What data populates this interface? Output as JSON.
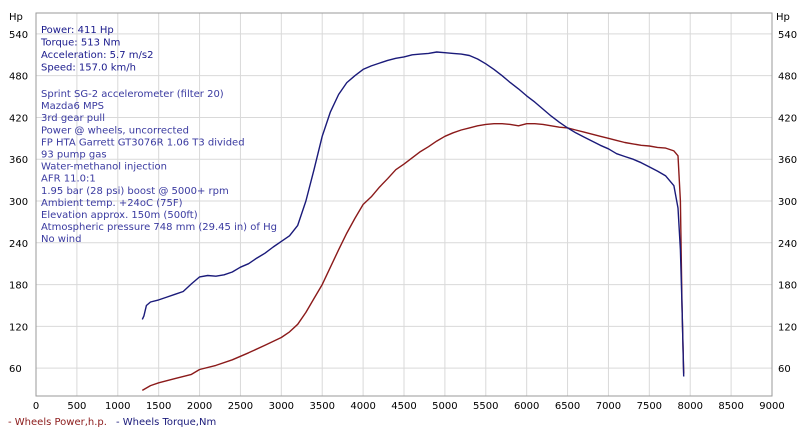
{
  "chart_data": {
    "type": "line",
    "units": {
      "left": "Hp",
      "right": "Hp"
    },
    "stats": [
      {
        "label": "Power:",
        "value": "411 Hp"
      },
      {
        "label": "Torque:",
        "value": "513 Nm"
      },
      {
        "label": "Acceleration:",
        "value": "5.7 m/s2"
      },
      {
        "label": "Speed:",
        "value": "157.0 km/h"
      }
    ],
    "notes": [
      "Sprint SG-2 accelerometer (filter 20)",
      "Mazda6 MPS",
      "3rd gear pull",
      "Power @ wheels, uncorrected",
      "FP HTA Garrett GT3076R 1.06 T3 divided",
      "93 pump gas",
      "Water-methanol injection",
      "AFR 11.0:1",
      "1.95 bar (28 psi) boost @ 5000+ rpm",
      "Ambient temp. +24oC (75F)",
      "Elevation approx. 150m (500ft)",
      "Atmospheric pressure 748 mm (29.45 in) of Hg",
      "No wind"
    ],
    "x_ticks": [
      "0",
      "500",
      "1000",
      "1500",
      "2000",
      "2500",
      "3000",
      "3500",
      "4000",
      "4500",
      "5000",
      "5500",
      "6000",
      "6500",
      "7000",
      "7500",
      "8000",
      "8500",
      "9000"
    ],
    "y_ticks": [
      "60",
      "120",
      "180",
      "240",
      "300",
      "360",
      "420",
      "480",
      "540"
    ],
    "xlim": [
      0,
      9000
    ],
    "ylim": [
      20,
      570
    ],
    "grid": true,
    "legend_position": "bottom-left",
    "series": [
      {
        "name": "Wheels Power,h.p.",
        "color": "#8b1a1a",
        "x": [
          1300,
          1400,
          1500,
          1700,
          1900,
          2000,
          2200,
          2400,
          2600,
          2800,
          3000,
          3100,
          3200,
          3300,
          3400,
          3500,
          3600,
          3700,
          3800,
          3900,
          4000,
          4100,
          4200,
          4300,
          4400,
          4500,
          4600,
          4700,
          4800,
          4900,
          5000,
          5100,
          5200,
          5300,
          5400,
          5500,
          5600,
          5700,
          5800,
          5900,
          6000,
          6100,
          6200,
          6300,
          6400,
          6500,
          6600,
          6700,
          6800,
          6900,
          7000,
          7100,
          7200,
          7300,
          7400,
          7500,
          7600,
          7700,
          7800,
          7850,
          7880,
          7900,
          7920
        ],
        "y": [
          28,
          35,
          39,
          45,
          51,
          58,
          64,
          72,
          82,
          93,
          104,
          112,
          123,
          140,
          160,
          180,
          205,
          230,
          254,
          275,
          295,
          306,
          320,
          332,
          345,
          353,
          362,
          371,
          378,
          386,
          393,
          398,
          402,
          405,
          408,
          410,
          411,
          411,
          410,
          408,
          411,
          411,
          410,
          408,
          406,
          405,
          402,
          399,
          396,
          393,
          390,
          387,
          384,
          382,
          380,
          379,
          377,
          376,
          372,
          365,
          300,
          150,
          52
        ]
      },
      {
        "name": "Wheels Torque,Nm",
        "color": "#1a1a7a",
        "x": [
          1300,
          1320,
          1350,
          1400,
          1500,
          1600,
          1700,
          1800,
          1900,
          2000,
          2100,
          2200,
          2300,
          2400,
          2500,
          2600,
          2700,
          2800,
          2900,
          3000,
          3100,
          3200,
          3300,
          3400,
          3500,
          3600,
          3700,
          3800,
          3900,
          4000,
          4100,
          4200,
          4300,
          4400,
          4500,
          4600,
          4700,
          4800,
          4900,
          5000,
          5100,
          5200,
          5300,
          5400,
          5500,
          5600,
          5700,
          5800,
          5900,
          6000,
          6100,
          6200,
          6300,
          6400,
          6500,
          6600,
          6700,
          6800,
          6900,
          7000,
          7100,
          7200,
          7300,
          7400,
          7500,
          7600,
          7700,
          7800,
          7850,
          7880,
          7900,
          7920
        ],
        "y": [
          130,
          135,
          150,
          155,
          158,
          162,
          166,
          170,
          181,
          191,
          193,
          192,
          194,
          198,
          205,
          210,
          218,
          225,
          234,
          242,
          250,
          265,
          300,
          345,
          393,
          428,
          453,
          470,
          480,
          489,
          494,
          498,
          502,
          505,
          507,
          510,
          511,
          512,
          514,
          513,
          512,
          511,
          509,
          504,
          497,
          489,
          480,
          470,
          461,
          451,
          442,
          432,
          422,
          413,
          405,
          398,
          392,
          386,
          380,
          375,
          368,
          364,
          360,
          355,
          349,
          343,
          336,
          322,
          290,
          230,
          150,
          48
        ]
      }
    ]
  }
}
